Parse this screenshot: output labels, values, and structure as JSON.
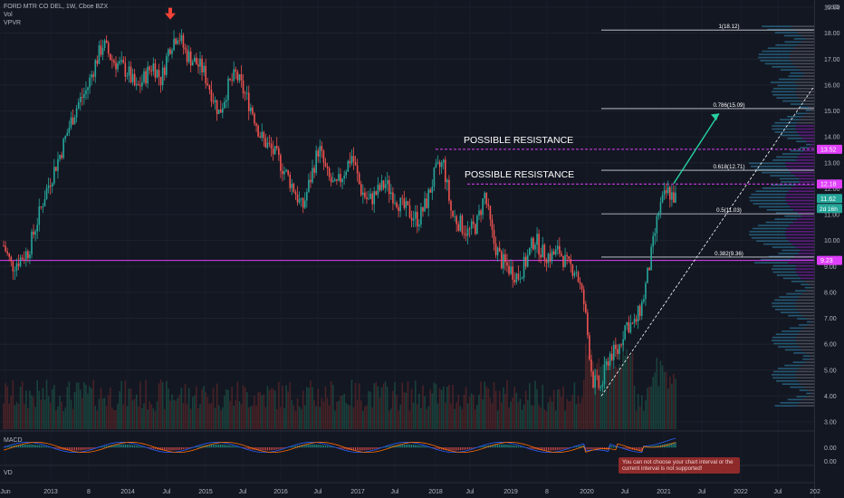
{
  "header": {
    "title": "FORD MTR CO DEL, 1W, Cboe BZX",
    "indicators": [
      "Vol",
      "VPVR"
    ],
    "macd_label": "MACD",
    "vd_label": "VD"
  },
  "warning": {
    "text": "You can not choose your chart interval or the current interval is not supported!"
  },
  "colors": {
    "background": "#131722",
    "up": "#26a69a",
    "down": "#ef5350",
    "magenta": "#e040fb",
    "fib": "#d1d4dc",
    "projection": "#26d0a0"
  },
  "chart_data": {
    "type": "candlestick",
    "symbol": "F",
    "interval": "1W",
    "currency": "USD",
    "ylim": [
      2.6,
      19.4
    ],
    "y_ticks": [
      "19.00",
      "18.00",
      "17.00",
      "16.00",
      "15.00",
      "14.00",
      "13.00",
      "12.00",
      "11.00",
      "10.00",
      "9.00",
      "8.00",
      "7.00",
      "6.00",
      "5.00",
      "4.00",
      "3.00"
    ],
    "x_ticks": [
      "Jun",
      "2013",
      "8",
      "2014",
      "Jul",
      "2015",
      "Jul",
      "2016",
      "Jul",
      "2017",
      "Jul",
      "2018",
      "Jul",
      "2019",
      "8",
      "2020",
      "Jul",
      "2021",
      "Jul",
      "2022",
      "Jul",
      "202"
    ],
    "price_path": [
      [
        0,
        9.8
      ],
      [
        1,
        9.0
      ],
      [
        3,
        9.6
      ],
      [
        5,
        11.8
      ],
      [
        7,
        13.5
      ],
      [
        8,
        14.5
      ],
      [
        9,
        15.3
      ],
      [
        10,
        15.8
      ],
      [
        11,
        16.8
      ],
      [
        12,
        17.6
      ],
      [
        13,
        17.0
      ],
      [
        15,
        16.5
      ],
      [
        16,
        15.8
      ],
      [
        18,
        16.8
      ],
      [
        19,
        16.2
      ],
      [
        20,
        17.5
      ],
      [
        21,
        18.0
      ],
      [
        22,
        17.2
      ],
      [
        24,
        16.6
      ],
      [
        26,
        14.9
      ],
      [
        27,
        15.9
      ],
      [
        28,
        16.4
      ],
      [
        30,
        15.0
      ],
      [
        31,
        14.0
      ],
      [
        33,
        13.2
      ],
      [
        35,
        12.0
      ],
      [
        36,
        11.2
      ],
      [
        38,
        13.6
      ],
      [
        39,
        12.5
      ],
      [
        40,
        12.0
      ],
      [
        42,
        13.3
      ],
      [
        43,
        12.0
      ],
      [
        44,
        11.5
      ],
      [
        46,
        12.2
      ],
      [
        48,
        11.3
      ],
      [
        50,
        10.8
      ],
      [
        51,
        11.5
      ],
      [
        52,
        12.6
      ],
      [
        53,
        13.0
      ],
      [
        54,
        11.0
      ],
      [
        56,
        10.3
      ],
      [
        57,
        10.6
      ],
      [
        58,
        11.8
      ],
      [
        59,
        10.0
      ],
      [
        60,
        9.2
      ],
      [
        62,
        8.6
      ],
      [
        63,
        9.2
      ],
      [
        64,
        10.1
      ],
      [
        65,
        9.5
      ],
      [
        66,
        9.4
      ],
      [
        67,
        9.6
      ],
      [
        68,
        9.0
      ],
      [
        69,
        8.9
      ],
      [
        70,
        7.5
      ],
      [
        71,
        4.6
      ],
      [
        72,
        4.3
      ],
      [
        73,
        5.6
      ],
      [
        74,
        5.7
      ],
      [
        75,
        6.8
      ],
      [
        76,
        6.7
      ],
      [
        77,
        7.6
      ],
      [
        78,
        9.3
      ],
      [
        79,
        11.2
      ],
      [
        80,
        11.9
      ],
      [
        81,
        11.62
      ]
    ],
    "last_price": "11.62",
    "countdown": "2d 16h",
    "price_labels": [
      {
        "value": "13.52",
        "color": "#e040fb"
      },
      {
        "value": "12.18",
        "color": "#e040fb"
      },
      {
        "value": "11.62",
        "color": "#26a69a"
      },
      {
        "value": "9.23",
        "color": "#e040fb"
      }
    ],
    "horizontal_lines": [
      {
        "price": 9.23,
        "color": "#e040fb",
        "style": "solid"
      },
      {
        "price": 13.52,
        "color": "#e040fb",
        "style": "dashed"
      },
      {
        "price": 12.18,
        "color": "#e040fb",
        "style": "dashed"
      }
    ],
    "fibonacci": [
      {
        "label": "1(18.12)",
        "price": 18.12
      },
      {
        "label": "0.786(15.09)",
        "price": 15.09
      },
      {
        "label": "0.618(12.71)",
        "price": 12.71
      },
      {
        "label": "0.5(11.03)",
        "price": 11.03
      },
      {
        "label": "0.382(9.36)",
        "price": 9.36
      }
    ],
    "annotations": [
      {
        "text": "POSSIBLE RESISTANCE",
        "price": 13.52
      },
      {
        "text": "POSSIBLE RESISTANCE",
        "price": 12.18
      }
    ],
    "projection_arrow": {
      "from_price": 12.2,
      "to_price": 14.9
    },
    "trendline": {
      "from_price": 4.0,
      "to_price": 16.0
    },
    "peak_marker": {
      "price": 18.0
    },
    "macd_ticks": [
      "0.00",
      "0.00"
    ]
  }
}
